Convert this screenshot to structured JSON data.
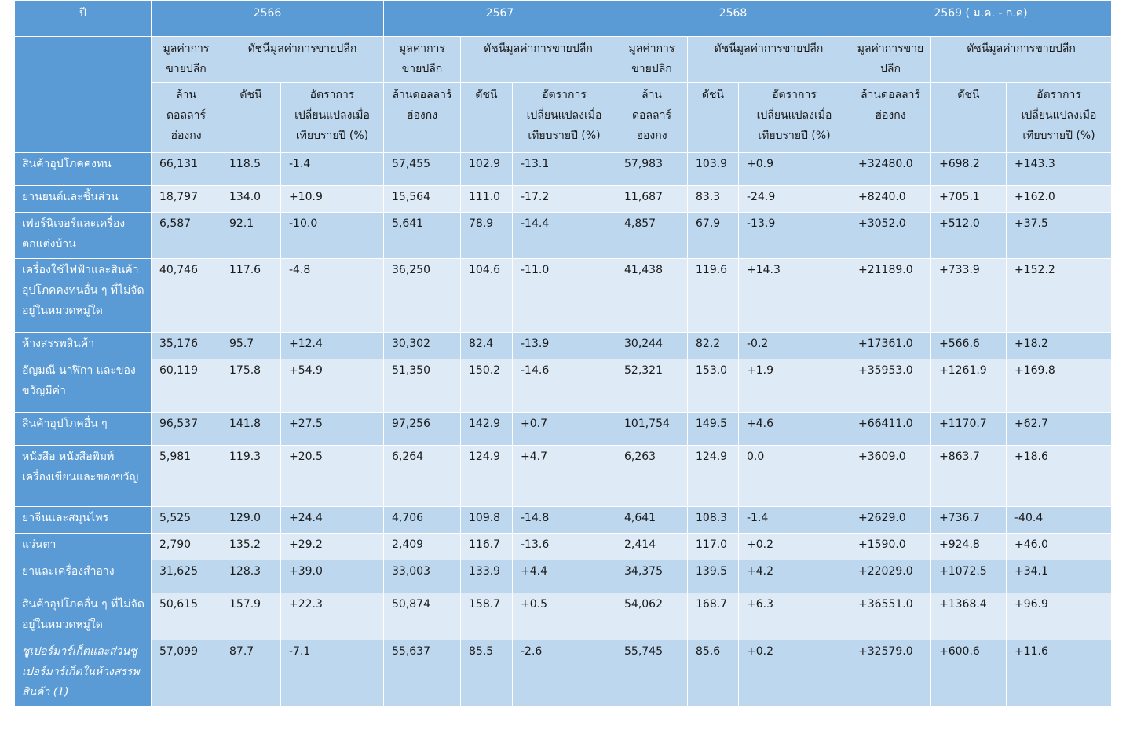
{
  "header": {
    "year_label": "ปี",
    "years": [
      "2566",
      "2567",
      "2568",
      "2569 ( ม.ค. - ก.ค)"
    ],
    "group_value": "มูลค่าการขายปลีก",
    "group_index": "ดัชนีมูลค่าการขายปลีก",
    "unit": "ล้านดอลลาร์ฮ่องกง",
    "col_index": "ดัชนี",
    "col_change": "อัตราการเปลี่ยนแปลงเมื่อเทียบรายปี (%)"
  },
  "rows": [
    {
      "label": "สินค้าอุปโภคคงทน",
      "italic": false,
      "cells": [
        "66,131",
        "118.5",
        "-1.4",
        "57,455",
        "102.9",
        "-13.1",
        "57,983",
        "103.9",
        "+0.9",
        "+32480.0",
        "+698.2",
        "+143.3"
      ]
    },
    {
      "label": "ยานยนต์และชิ้นส่วน",
      "italic": false,
      "cells": [
        "18,797",
        "134.0",
        "+10.9",
        "15,564",
        "111.0",
        "-17.2",
        "11,687",
        "83.3",
        "-24.9",
        "+8240.0",
        "+705.1",
        "+162.0"
      ]
    },
    {
      "label": "เฟอร์นิเจอร์และเครื่องตกแต่งบ้าน",
      "italic": false,
      "cells": [
        "6,587",
        "92.1",
        "-10.0",
        "5,641",
        "78.9",
        "-14.4",
        "4,857",
        "67.9",
        "-13.9",
        "+3052.0",
        "+512.0",
        "+37.5"
      ]
    },
    {
      "label": "เครื่องใช้ไฟฟ้าและสินค้าอุปโภคคงทนอื่น ๆ ที่ไม่จัดอยู่ในหมวดหมู่ใด",
      "italic": false,
      "cells": [
        "40,746",
        "117.6",
        "-4.8",
        "36,250",
        "104.6",
        "-11.0",
        "41,438",
        "119.6",
        "+14.3",
        "+21189.0",
        "+733.9",
        "+152.2"
      ]
    },
    {
      "label": "ห้างสรรพสินค้า",
      "italic": false,
      "cells": [
        "35,176",
        "95.7",
        "+12.4",
        "30,302",
        "82.4",
        "-13.9",
        "30,244",
        "82.2",
        "-0.2",
        "+17361.0",
        "+566.6",
        "+18.2"
      ]
    },
    {
      "label": "อัญมณี นาฬิกา และของขวัญมีค่า",
      "italic": false,
      "cells": [
        "60,119",
        "175.8",
        "+54.9",
        "51,350",
        "150.2",
        "-14.6",
        "52,321",
        "153.0",
        "+1.9",
        "+35953.0",
        "+1261.9",
        "+169.8"
      ]
    },
    {
      "label": "สินค้าอุปโภคอื่น ๆ",
      "italic": false,
      "cells": [
        "96,537",
        "141.8",
        "+27.5",
        "97,256",
        "142.9",
        "+0.7",
        "101,754",
        "149.5",
        "+4.6",
        "+66411.0",
        "+1170.7",
        "+62.7"
      ]
    },
    {
      "label": "หนังสือ หนังสือพิมพ์ เครื่องเขียนและของขวัญ",
      "italic": false,
      "cells": [
        "5,981",
        "119.3",
        "+20.5",
        "6,264",
        "124.9",
        "+4.7",
        "6,263",
        "124.9",
        "0.0",
        "+3609.0",
        "+863.7",
        "+18.6"
      ]
    },
    {
      "label": "ยาจีนและสมุนไพร",
      "italic": false,
      "cells": [
        "5,525",
        "129.0",
        "+24.4",
        "4,706",
        "109.8",
        "-14.8",
        "4,641",
        "108.3",
        "-1.4",
        "+2629.0",
        "+736.7",
        "-40.4"
      ]
    },
    {
      "label": " แว่นตา",
      "italic": false,
      "cells": [
        "2,790",
        "135.2",
        "+29.2",
        "2,409",
        "116.7",
        "-13.6",
        "2,414",
        "117.0",
        "+0.2",
        "+1590.0",
        "+924.8",
        "+46.0"
      ]
    },
    {
      "label": "ยาและเครื่องสำอาง",
      "italic": false,
      "cells": [
        "31,625",
        "128.3",
        "+39.0",
        "33,003",
        "133.9",
        "+4.4",
        "34,375",
        "139.5",
        "+4.2",
        "+22029.0",
        "+1072.5",
        "+34.1"
      ]
    },
    {
      "label": "สินค้าอุปโภคอื่น ๆ ที่ไม่จัดอยู่ในหมวดหมู่ใด",
      "italic": false,
      "cells": [
        "50,615",
        "157.9",
        "+22.3",
        "50,874",
        "158.7",
        "+0.5",
        "54,062",
        "168.7",
        "+6.3",
        "+36551.0",
        "+1368.4",
        "+96.9"
      ]
    },
    {
      "label": "ซูเปอร์มาร์เก็ตและส่วนซูเปอร์มาร์เก็ตในห้างสรรพสินค้า (1)",
      "italic": true,
      "cells": [
        "57,099",
        "87.7",
        "-7.1",
        "55,637",
        "85.5",
        "-2.6",
        "55,745",
        "85.6",
        "+0.2",
        "+32579.0",
        "+600.6",
        "+11.6"
      ]
    }
  ]
}
